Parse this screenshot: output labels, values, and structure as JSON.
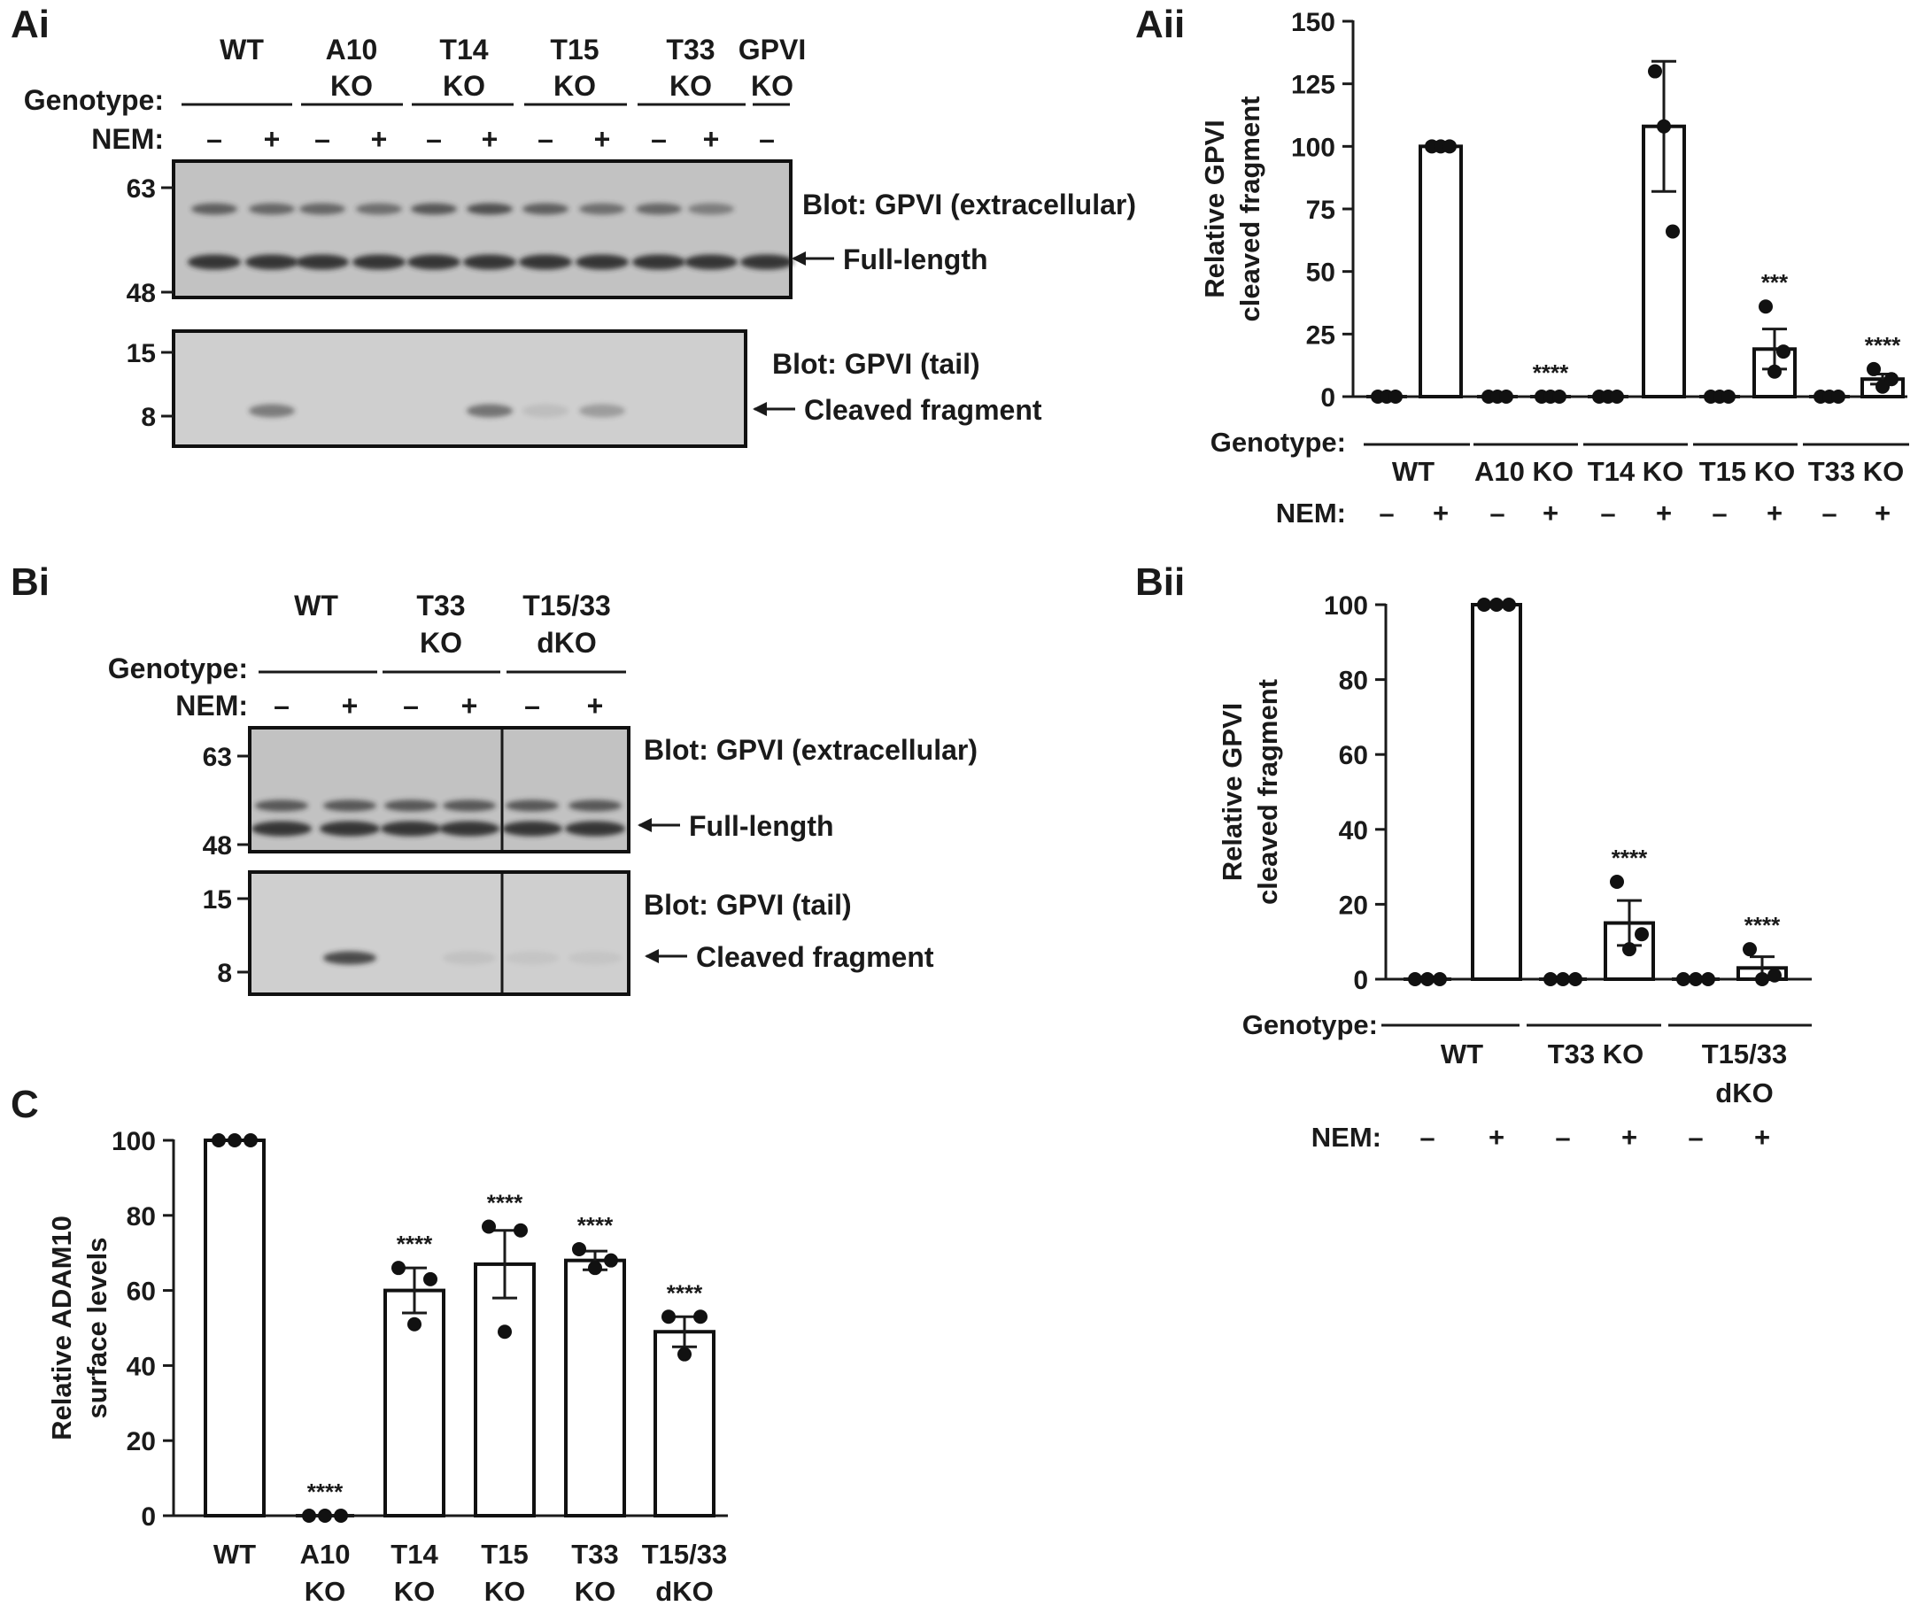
{
  "panels": {
    "Ai": {
      "label": "Ai",
      "genotype_label": "Genotype:",
      "nem_label": "NEM:",
      "minus": "–",
      "plus": "+",
      "genotypes": [
        {
          "lines": [
            "WT"
          ]
        },
        {
          "lines": [
            "A10",
            "KO"
          ]
        },
        {
          "lines": [
            "T14",
            "KO"
          ]
        },
        {
          "lines": [
            "T15",
            "KO"
          ]
        },
        {
          "lines": [
            "T33",
            "KO"
          ]
        },
        {
          "lines": [
            "GPVI",
            "KO"
          ]
        }
      ],
      "blot_top": {
        "title": "Blot: GPVI (extracellular)",
        "band": "Full-length",
        "markers": [
          "63",
          "48"
        ]
      },
      "blot_bottom": {
        "title": "Blot: GPVI (tail)",
        "band": "Cleaved fragment",
        "markers": [
          "15",
          "8"
        ]
      }
    },
    "Bi": {
      "label": "Bi",
      "genotype_label": "Genotype:",
      "nem_label": "NEM:",
      "minus": "–",
      "plus": "+",
      "genotypes": [
        {
          "lines": [
            "WT"
          ]
        },
        {
          "lines": [
            "T33",
            "KO"
          ]
        },
        {
          "lines": [
            "T15/33",
            "dKO"
          ]
        }
      ],
      "blot_top": {
        "title": "Blot: GPVI (extracellular)",
        "band": "Full-length",
        "markers": [
          "63",
          "48"
        ]
      },
      "blot_bottom": {
        "title": "Blot: GPVI (tail)",
        "band": "Cleaved fragment",
        "markers": [
          "15",
          "8"
        ]
      }
    },
    "Aii": {
      "label": "Aii",
      "genotype_label": "Genotype:",
      "nem_label": "NEM:",
      "minus": "–",
      "plus": "+"
    },
    "Bii": {
      "label": "Bii",
      "genotype_label": "Genotype:",
      "nem_label": "NEM:",
      "minus": "–",
      "plus": "+"
    },
    "C": {
      "label": "C"
    }
  },
  "chart_data": [
    {
      "id": "Aii",
      "type": "bar",
      "ylabel": [
        "Relative GPVI",
        "cleaved fragment"
      ],
      "ylim": [
        0,
        150
      ],
      "yticks": [
        0,
        25,
        50,
        75,
        100,
        125,
        150
      ],
      "groups": [
        "WT",
        "A10 KO",
        "T14 KO",
        "T15 KO",
        "T33 KO"
      ],
      "nem": [
        "–",
        "+",
        "–",
        "+",
        "–",
        "+",
        "–",
        "+",
        "–",
        "+"
      ],
      "values": [
        0,
        100,
        0,
        0,
        0,
        108,
        0,
        19,
        0,
        7
      ],
      "errors": [
        0,
        0,
        0,
        0,
        0,
        26,
        0,
        8,
        0,
        2
      ],
      "points": [
        [
          0,
          0,
          0
        ],
        [
          100,
          100,
          100
        ],
        [
          0,
          0,
          0
        ],
        [
          0,
          0,
          0
        ],
        [
          0,
          0,
          0
        ],
        [
          130,
          108,
          66
        ],
        [
          0,
          0,
          0
        ],
        [
          36,
          10,
          18
        ],
        [
          0,
          0,
          0
        ],
        [
          11,
          4,
          7
        ]
      ],
      "sig": [
        "",
        "",
        "",
        "****",
        "",
        "",
        "",
        "***",
        "",
        "****"
      ]
    },
    {
      "id": "Bii",
      "type": "bar",
      "ylabel": [
        "Relative GPVI",
        "cleaved fragment"
      ],
      "ylim": [
        0,
        100
      ],
      "yticks": [
        0,
        20,
        40,
        60,
        80,
        100
      ],
      "groups": [
        [
          "WT"
        ],
        [
          "T33 KO"
        ],
        [
          "T15/33",
          "dKO"
        ]
      ],
      "nem": [
        "–",
        "+",
        "–",
        "+",
        "–",
        "+"
      ],
      "values": [
        0,
        100,
        0,
        15,
        0,
        3
      ],
      "errors": [
        0,
        0,
        0,
        6,
        0,
        3
      ],
      "points": [
        [
          0,
          0,
          0
        ],
        [
          100,
          100,
          100
        ],
        [
          0,
          0,
          0
        ],
        [
          26,
          8,
          12
        ],
        [
          0,
          0,
          0
        ],
        [
          8,
          0,
          1
        ]
      ],
      "sig": [
        "",
        "",
        "",
        "****",
        "",
        "****"
      ]
    },
    {
      "id": "C",
      "type": "bar",
      "ylabel": [
        "Relative ADAM10",
        "surface levels"
      ],
      "ylim": [
        0,
        100
      ],
      "yticks": [
        0,
        20,
        40,
        60,
        80,
        100
      ],
      "categories": [
        [
          "WT"
        ],
        [
          "A10",
          "KO"
        ],
        [
          "T14",
          "KO"
        ],
        [
          "T15",
          "KO"
        ],
        [
          "T33",
          "KO"
        ],
        [
          "T15/33",
          "dKO"
        ]
      ],
      "values": [
        100,
        0,
        60,
        67,
        68,
        49
      ],
      "errors": [
        0,
        0,
        6,
        9,
        2.5,
        4
      ],
      "points": [
        [
          100,
          100,
          100
        ],
        [
          0,
          0,
          0
        ],
        [
          66,
          51,
          63
        ],
        [
          77,
          49,
          76
        ],
        [
          71,
          66,
          68
        ],
        [
          53,
          43,
          53
        ]
      ],
      "sig": [
        "",
        "****",
        "****",
        "****",
        "****",
        "****"
      ]
    }
  ]
}
